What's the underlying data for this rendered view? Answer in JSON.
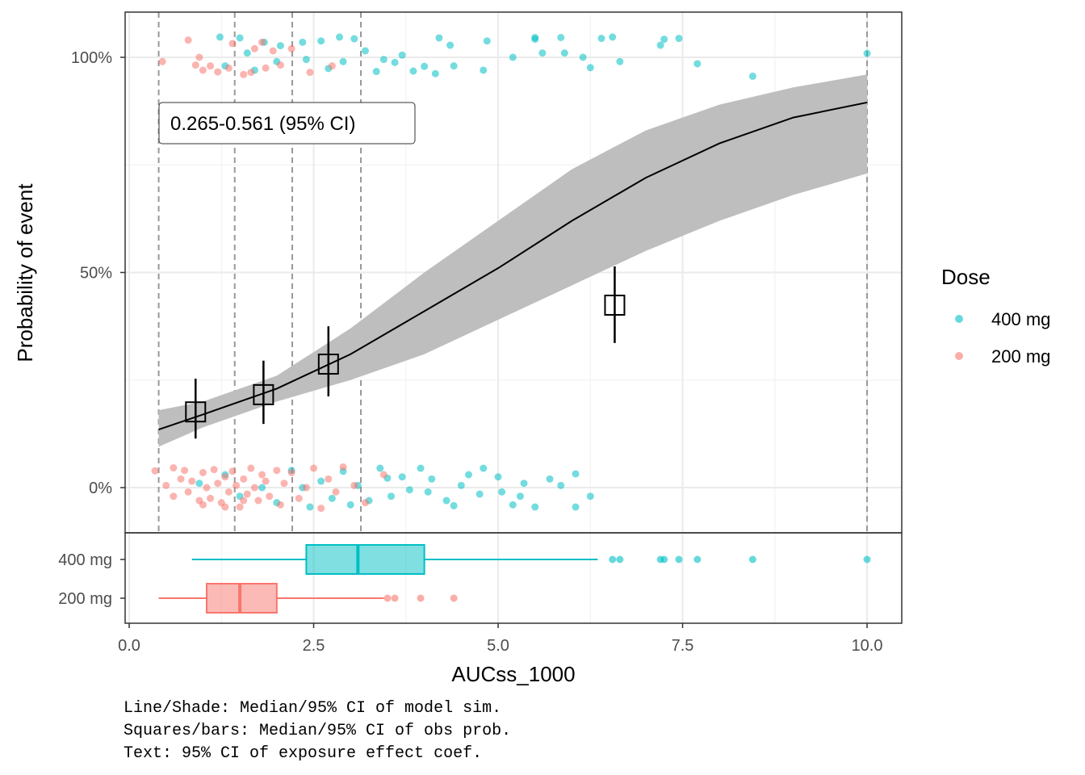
{
  "chart_data": [
    {
      "type": "scatter",
      "ylabel": "Probability of event",
      "ylim": [
        -10.5,
        110.5
      ],
      "yticks": [
        {
          "value": 0,
          "label": "0%"
        },
        {
          "value": 50,
          "label": "50%"
        },
        {
          "value": 100,
          "label": "100%"
        }
      ],
      "grid": true,
      "legend_title": "Dose",
      "legend": "right",
      "annotation": "0.265-0.561 (95% CI)",
      "reference_lines": [
        0.4,
        1.43,
        2.21,
        3.14,
        10.0
      ],
      "series": [
        {
          "name": "400 mg",
          "color": "#00BFC4",
          "x": [
            1.23,
            1.5,
            1.83,
            2.05,
            2.35,
            2.6,
            2.85,
            3.05,
            3.2,
            3.45,
            3.6,
            4.0,
            4.2,
            4.35,
            4.8,
            4.85,
            5.2,
            5.5,
            5.5,
            5.6,
            5.85,
            5.9,
            6.15,
            6.4,
            6.25,
            6.55,
            6.65,
            7.2,
            7.25,
            7.45,
            7.7,
            8.45,
            10.0,
            1.3,
            1.7,
            2.0,
            2.4,
            2.7,
            2.9,
            3.35,
            3.7,
            3.85,
            4.4,
            4.15,
            1.6,
            0.95,
            1.3,
            1.5,
            1.8,
            2.0,
            2.2,
            2.45,
            2.6,
            2.75,
            2.9,
            3.0,
            3.1,
            3.25,
            3.4,
            3.55,
            3.7,
            3.8,
            3.95,
            4.05,
            4.1,
            4.3,
            4.5,
            4.6,
            4.75,
            4.8,
            5.0,
            5.05,
            5.2,
            5.3,
            5.35,
            5.5,
            5.7,
            5.85,
            6.05,
            6.05,
            6.25,
            3.5,
            4.4,
            2.35
          ],
          "values": [
            104.7,
            104.5,
            103.5,
            102.7,
            103.5,
            103.8,
            104.7,
            104.3,
            101.5,
            99.5,
            98.8,
            97.9,
            104.5,
            102.8,
            97,
            103.8,
            100,
            104.6,
            104.2,
            101,
            104.6,
            101,
            100,
            104.4,
            97.6,
            104.7,
            99,
            102.8,
            104.2,
            104.4,
            98.5,
            95.6,
            100.9,
            98,
            97,
            99,
            99.5,
            97.4,
            99,
            96.7,
            100.5,
            96.8,
            98,
            96.2,
            101,
            1,
            3,
            -2,
            0,
            -3.5,
            4,
            -4.5,
            1.5,
            -2.5,
            3.8,
            -4,
            0.5,
            -3,
            4.5,
            -2,
            2.5,
            -0.5,
            4.5,
            -1,
            2,
            -3,
            0.5,
            3,
            -1.5,
            4.5,
            2.5,
            -1,
            -4,
            -2,
            1,
            -4.5,
            2,
            0.5,
            3.2,
            -4.5,
            -2,
            2.2,
            -4.2,
            0
          ]
        },
        {
          "name": "200 mg",
          "color": "#F8766D",
          "x": [
            0.45,
            0.8,
            0.95,
            1.0,
            1.2,
            1.35,
            1.55,
            1.7,
            1.85,
            1.95,
            2.05,
            2.2,
            2.45,
            1.1,
            1.65,
            2.75,
            1.4,
            0.9,
            1.8,
            0.35,
            0.5,
            0.6,
            0.7,
            0.75,
            0.8,
            0.85,
            0.95,
            1.0,
            1.05,
            1.1,
            1.15,
            1.2,
            1.25,
            1.3,
            1.35,
            1.4,
            1.45,
            1.5,
            1.55,
            1.6,
            1.65,
            1.7,
            1.75,
            1.8,
            1.85,
            1.9,
            2.0,
            2.05,
            2.1,
            2.2,
            2.3,
            2.4,
            2.5,
            2.6,
            2.7,
            2.8,
            2.9,
            3.05,
            3.2,
            3.45,
            0.6,
            1.0,
            1.3,
            1.55
          ],
          "values": [
            99,
            104,
            100,
            97,
            96.6,
            97.5,
            96,
            102,
            97.5,
            101.5,
            98.2,
            102,
            96.5,
            98,
            96.5,
            98,
            103.2,
            98.2,
            103.5,
            3.9,
            0.5,
            -2,
            2,
            4,
            -1,
            1.5,
            -3,
            3.5,
            0,
            -2.5,
            4.2,
            1,
            -3.5,
            2.5,
            -1,
            3.8,
            0.5,
            -4.5,
            2,
            -1.5,
            4.5,
            0,
            -3,
            3,
            1.5,
            -2,
            4,
            -4,
            1,
            3.5,
            -2.5,
            0,
            4.5,
            -4.8,
            2,
            -1,
            4.8,
            0.5,
            -3.5,
            3,
            4.6,
            -4,
            -4.5,
            -3
          ]
        }
      ],
      "model": {
        "x": [
          0.4,
          1,
          2,
          3,
          4,
          5,
          6,
          7,
          8,
          9,
          10
        ],
        "median": [
          13.5,
          17,
          23,
          31,
          41,
          51,
          62,
          72,
          80,
          86,
          89.5
        ],
        "lower": [
          9.5,
          14,
          20,
          25,
          31,
          39,
          47,
          55,
          62,
          68,
          73
        ],
        "upper": [
          18,
          20,
          26,
          37,
          50,
          62,
          74,
          83,
          89,
          93,
          96
        ]
      },
      "observed": {
        "x": [
          0.9,
          1.82,
          2.7,
          6.58
        ],
        "values": [
          17.6,
          21.6,
          28.7,
          42.4
        ],
        "lower": [
          11.4,
          14.8,
          21.2,
          33.6
        ],
        "upper": [
          25.3,
          29.5,
          37.5,
          51.4
        ]
      },
      "caption": [
        "Line/Shade: Median/95% CI of model sim.",
        "Squares/bars: Median/95% CI of obs prob.",
        "Text: 95% CI of exposure effect coef."
      ]
    },
    {
      "type": "box",
      "xlabel": "AUCss_1000",
      "xlim": [
        -0.055,
        10.47
      ],
      "xticks": [
        {
          "value": 0,
          "label": "0.0"
        },
        2.5,
        {
          "value": 5,
          "label": "5.0"
        },
        7.5,
        {
          "value": 10,
          "label": "10.0"
        }
      ],
      "categories": [
        "400 mg",
        "200 mg"
      ],
      "whisker_low": [
        0.85,
        0.4
      ],
      "q1": [
        2.4,
        1.05
      ],
      "median": [
        3.1,
        1.5
      ],
      "q3": [
        4.0,
        2.0
      ],
      "whisker_high": [
        6.35,
        3.45
      ],
      "outliers": [
        [
          6.55,
          6.65,
          7.2,
          7.25,
          7.45,
          7.7,
          8.45,
          10.0
        ],
        [
          3.5,
          3.6,
          3.95,
          4.4
        ]
      ]
    }
  ]
}
